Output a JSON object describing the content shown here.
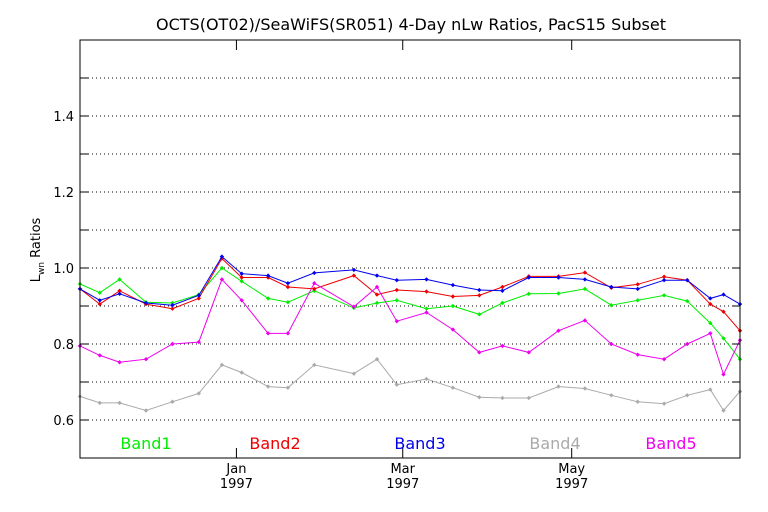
{
  "chart_data": {
    "type": "line",
    "title": "OCTS(OT02)/SeaWiFS(SR051) 4-Day nLw Ratios, PacS15 Subset",
    "ylabel": {
      "main": "L",
      "sub": "wn",
      "rest": " Ratios"
    },
    "xlabel": "",
    "ylim": [
      0.5,
      1.6
    ],
    "xlim": [
      0,
      1
    ],
    "y_ticks": [
      "0.6",
      "0.8",
      "1.0",
      "1.2",
      "1.4"
    ],
    "y_tick_values": [
      0.6,
      0.8,
      1.0,
      1.2,
      1.4
    ],
    "x_ticks": [
      {
        "line1": "Jan",
        "line2": "1997",
        "x": 0.237
      },
      {
        "line1": "Mar",
        "line2": "1997",
        "x": 0.489
      },
      {
        "line1": "May",
        "line2": "1997",
        "x": 0.745
      }
    ],
    "grid": "horizontal-dotted",
    "x": [
      0.0,
      0.03,
      0.06,
      0.1,
      0.14,
      0.18,
      0.215,
      0.245,
      0.285,
      0.315,
      0.355,
      0.415,
      0.45,
      0.48,
      0.525,
      0.565,
      0.605,
      0.64,
      0.68,
      0.725,
      0.765,
      0.805,
      0.845,
      0.885,
      0.92,
      0.955,
      0.975,
      1.0
    ],
    "series": [
      {
        "name": "Band1",
        "color": "#00ee00",
        "values": [
          0.958,
          0.935,
          0.97,
          0.91,
          0.908,
          0.93,
          1.0,
          0.965,
          0.92,
          0.91,
          0.94,
          0.895,
          0.908,
          0.915,
          0.893,
          0.9,
          0.878,
          0.908,
          0.932,
          0.933,
          0.945,
          0.902,
          0.915,
          0.928,
          0.913,
          0.855,
          0.815,
          0.76
        ]
      },
      {
        "name": "Band2",
        "color": "#ee0000",
        "values": [
          0.945,
          0.905,
          0.94,
          0.905,
          0.893,
          0.92,
          1.025,
          0.975,
          0.975,
          0.95,
          0.945,
          0.98,
          0.93,
          0.942,
          0.938,
          0.925,
          0.928,
          0.95,
          0.978,
          0.978,
          0.988,
          0.948,
          0.957,
          0.977,
          0.968,
          0.905,
          0.885,
          0.835
        ]
      },
      {
        "name": "Band3",
        "color": "#0000ee",
        "values": [
          0.945,
          0.915,
          0.932,
          0.908,
          0.902,
          0.928,
          1.03,
          0.985,
          0.98,
          0.96,
          0.987,
          0.995,
          0.98,
          0.968,
          0.97,
          0.955,
          0.942,
          0.94,
          0.975,
          0.975,
          0.97,
          0.95,
          0.945,
          0.968,
          0.968,
          0.92,
          0.93,
          0.905
        ]
      },
      {
        "name": "Band4",
        "color": "#aaaaaa",
        "values": [
          0.662,
          0.645,
          0.645,
          0.625,
          0.648,
          0.67,
          0.745,
          0.725,
          0.688,
          0.685,
          0.745,
          0.722,
          0.76,
          0.693,
          0.708,
          0.685,
          0.66,
          0.658,
          0.658,
          0.688,
          0.683,
          0.665,
          0.648,
          0.643,
          0.665,
          0.68,
          0.625,
          0.675
        ]
      },
      {
        "name": "Band5",
        "color": "#ee00ee",
        "values": [
          0.795,
          0.77,
          0.752,
          0.76,
          0.8,
          0.805,
          0.97,
          0.915,
          0.828,
          0.828,
          0.96,
          0.898,
          0.95,
          0.86,
          0.883,
          0.838,
          0.778,
          0.795,
          0.778,
          0.835,
          0.862,
          0.8,
          0.772,
          0.76,
          0.8,
          0.828,
          0.72,
          0.81
        ]
      }
    ]
  }
}
